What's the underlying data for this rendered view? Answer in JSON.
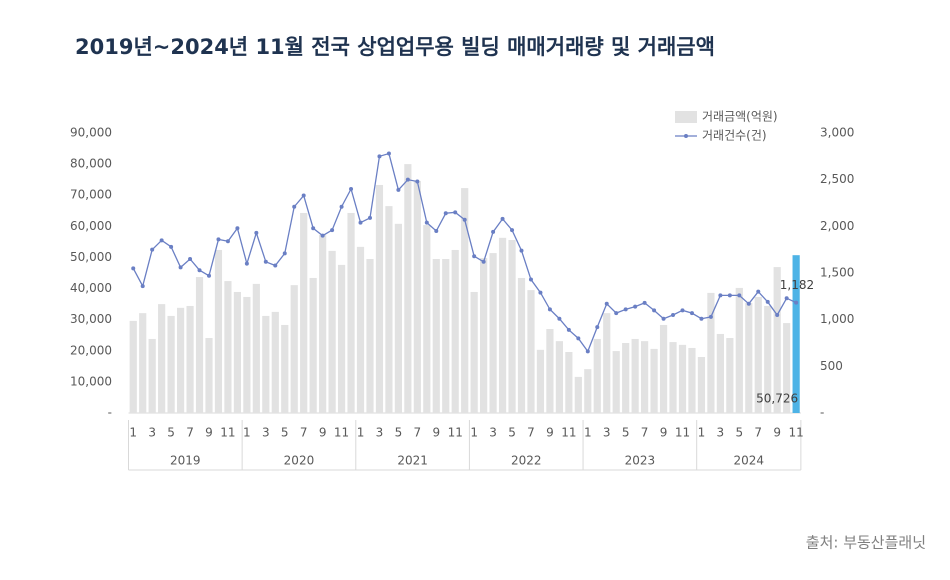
{
  "chart_data": {
    "type": "bar-line",
    "title": "2019년~2024년 11월 전국 상업업무용 빌딩 매매거래량 및 거래금액",
    "source": "출처: 부동산플래닛",
    "categories": [
      "1",
      null,
      "3",
      null,
      "5",
      null,
      "7",
      null,
      "9",
      null,
      "11",
      null,
      "1",
      null,
      "3",
      null,
      "5",
      null,
      "7",
      null,
      "9",
      null,
      "11",
      null,
      "1",
      null,
      "3",
      null,
      "5",
      null,
      "7",
      null,
      "9",
      null,
      "11",
      null,
      "1",
      null,
      "3",
      null,
      "5",
      null,
      "7",
      null,
      "9",
      null,
      "11",
      null,
      "1",
      null,
      "3",
      null,
      "5",
      null,
      "7",
      null,
      "9",
      null,
      "11",
      null,
      "1",
      null,
      "3",
      null,
      "5",
      null,
      "7",
      null,
      "9",
      null,
      "11"
    ],
    "x_groups": [
      "2019",
      "2020",
      "2021",
      "2022",
      "2023",
      "2024"
    ],
    "series": [
      {
        "name": "거래금액(억원)",
        "kind": "bar",
        "color": "#e2e2e2",
        "highlight_color": "#4db3e6",
        "values": [
          29600,
          32100,
          23800,
          35000,
          31200,
          33800,
          34400,
          43700,
          24100,
          52400,
          42400,
          38900,
          37300,
          41500,
          31200,
          32500,
          28300,
          41100,
          64300,
          43400,
          57200,
          52100,
          47600,
          64300,
          53400,
          49500,
          73300,
          66500,
          60800,
          80000,
          74600,
          60400,
          49500,
          49500,
          52400,
          72300,
          38900,
          49800,
          51400,
          56300,
          55600,
          43400,
          39500,
          20300,
          27000,
          23100,
          19600,
          11600,
          14100,
          23800,
          32100,
          19900,
          22500,
          23800,
          23100,
          20600,
          28300,
          22800,
          21900,
          20900,
          18000,
          38600,
          25400,
          24100,
          40200,
          35400,
          37300,
          34400,
          46900,
          28900,
          50726
        ],
        "value_labels": [
          null,
          null,
          null,
          null,
          null,
          null,
          null,
          null,
          null,
          null,
          null,
          null,
          null,
          null,
          null,
          null,
          null,
          null,
          null,
          null,
          null,
          null,
          null,
          null,
          null,
          null,
          null,
          null,
          null,
          null,
          null,
          null,
          null,
          null,
          null,
          null,
          null,
          null,
          null,
          null,
          null,
          null,
          null,
          null,
          null,
          null,
          null,
          null,
          null,
          null,
          null,
          null,
          null,
          null,
          null,
          null,
          null,
          null,
          null,
          null,
          null,
          null,
          null,
          null,
          null,
          null,
          null,
          null,
          null,
          null,
          "50,726"
        ]
      },
      {
        "name": "거래건수(건)",
        "kind": "line",
        "axis": "y2",
        "color": "#6a7fc4",
        "values": [
          1550,
          1360,
          1750,
          1850,
          1780,
          1560,
          1650,
          1530,
          1470,
          1860,
          1840,
          1980,
          1600,
          1930,
          1620,
          1580,
          1710,
          2210,
          2330,
          1980,
          1900,
          1960,
          2210,
          2400,
          2040,
          2090,
          2750,
          2780,
          2390,
          2500,
          2480,
          2040,
          1950,
          2140,
          2150,
          2070,
          1680,
          1620,
          1940,
          2080,
          1960,
          1740,
          1430,
          1290,
          1110,
          1010,
          890,
          800,
          660,
          920,
          1170,
          1070,
          1110,
          1140,
          1180,
          1100,
          1010,
          1050,
          1100,
          1070,
          1010,
          1030,
          1260,
          1260,
          1260,
          1170,
          1300,
          1190,
          1050,
          1230,
          1182
        ],
        "value_labels": [
          null,
          null,
          null,
          null,
          null,
          null,
          null,
          null,
          null,
          null,
          null,
          null,
          null,
          null,
          null,
          null,
          null,
          null,
          null,
          null,
          null,
          null,
          null,
          null,
          null,
          null,
          null,
          null,
          null,
          null,
          null,
          null,
          null,
          null,
          null,
          null,
          null,
          null,
          null,
          null,
          null,
          null,
          null,
          null,
          null,
          null,
          null,
          null,
          null,
          null,
          null,
          null,
          null,
          null,
          null,
          null,
          null,
          null,
          null,
          null,
          null,
          null,
          null,
          null,
          null,
          null,
          null,
          null,
          null,
          null,
          "1,182"
        ]
      }
    ],
    "ylim": [
      0,
      90000
    ],
    "yticks": [
      {
        "value": 0,
        "label": "-"
      },
      {
        "value": 10000,
        "label": "10,000"
      },
      {
        "value": 20000,
        "label": "20,000"
      },
      {
        "value": 30000,
        "label": "30,000"
      },
      {
        "value": 40000,
        "label": "40,000"
      },
      {
        "value": 50000,
        "label": "50,000"
      },
      {
        "value": 60000,
        "label": "60,000"
      },
      {
        "value": 70000,
        "label": "70,000"
      },
      {
        "value": 80000,
        "label": "80,000"
      },
      {
        "value": 90000,
        "label": "90,000"
      }
    ],
    "y2lim": [
      0,
      3000
    ],
    "y2ticks": [
      {
        "value": 0,
        "label": "-"
      },
      500,
      {
        "value": 1000,
        "label": "1,000"
      },
      {
        "value": 1500,
        "label": "1,500"
      },
      {
        "value": 2000,
        "label": "2,000"
      },
      {
        "value": 2500,
        "label": "2,500"
      },
      {
        "value": 3000,
        "label": "3,000"
      }
    ],
    "grid": false,
    "legend": "top-right"
  }
}
